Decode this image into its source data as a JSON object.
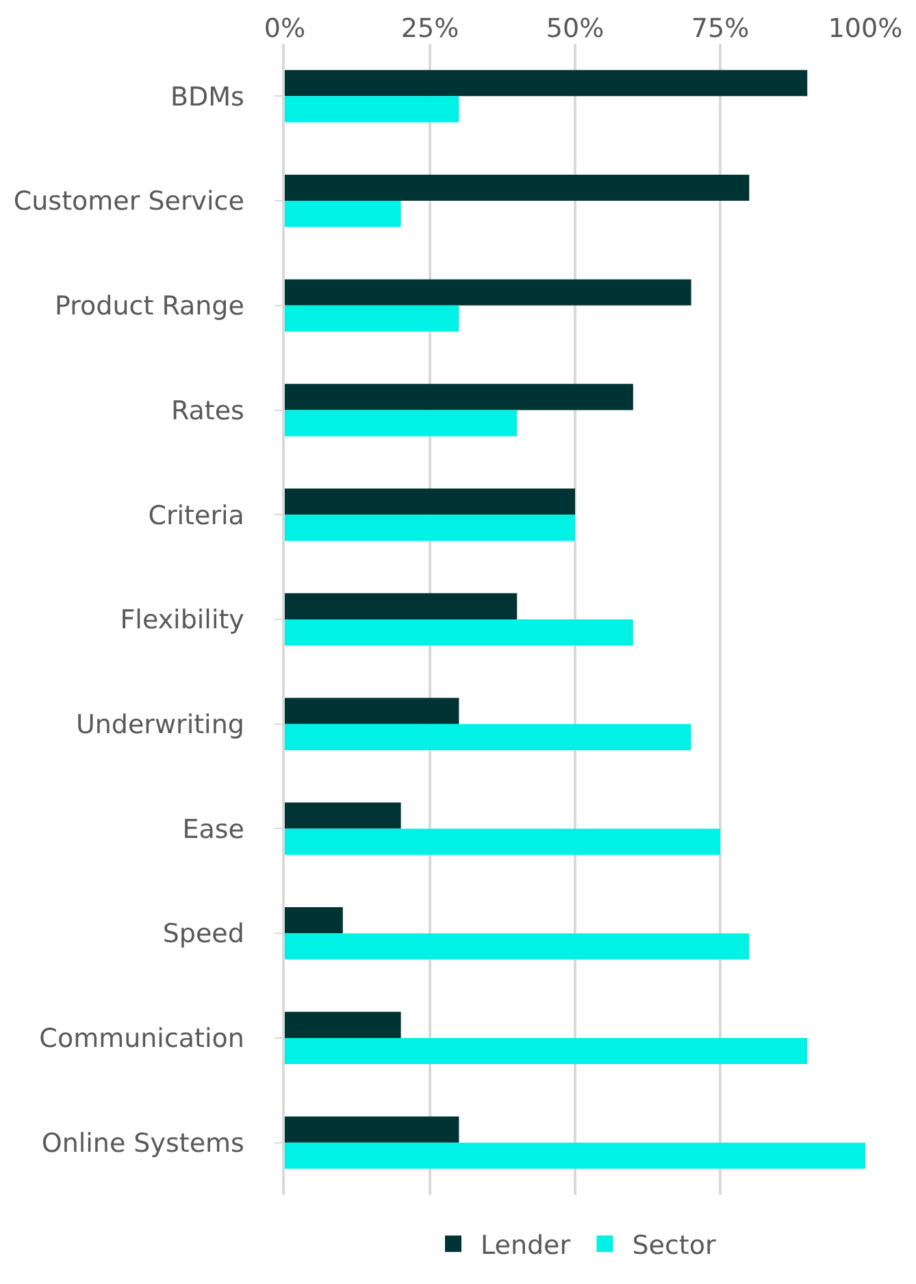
{
  "chart_data": {
    "type": "bar",
    "orientation": "horizontal",
    "categories": [
      "BDMs",
      "Customer Service",
      "Product Range",
      "Rates",
      "Criteria",
      "Flexibility",
      "Underwriting",
      "Ease",
      "Speed",
      "Communication",
      "Online Systems"
    ],
    "series": [
      {
        "name": "Lender",
        "color": "#003333",
        "values": [
          90,
          80,
          70,
          60,
          50,
          40,
          30,
          20,
          10,
          20,
          30
        ]
      },
      {
        "name": "Sector",
        "color": "#00f2e6",
        "values": [
          30,
          20,
          30,
          40,
          50,
          60,
          70,
          75,
          80,
          90,
          100
        ]
      }
    ],
    "xlim": [
      0,
      100
    ],
    "xticks": [
      {
        "value": 0,
        "label": "0%"
      },
      {
        "value": 25,
        "label": "25%"
      },
      {
        "value": 50,
        "label": "50%"
      },
      {
        "value": 75,
        "label": "75%"
      },
      {
        "value": 100,
        "label": "100%"
      }
    ],
    "grid": "x",
    "legend": "bottom"
  }
}
